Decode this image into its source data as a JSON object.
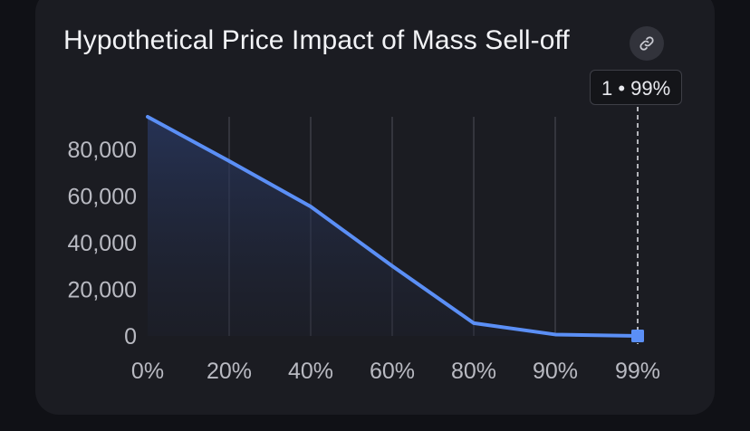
{
  "chart_data": {
    "type": "area",
    "title": "Hypothetical Price Impact of Mass Sell-off",
    "categories": [
      "0%",
      "20%",
      "40%",
      "60%",
      "80%",
      "90%",
      "99%"
    ],
    "series": [
      {
        "values": [
          94000,
          75000,
          55500,
          30000,
          5500,
          600,
          0
        ]
      }
    ],
    "yticks": [
      0,
      20000,
      40000,
      60000,
      80000
    ],
    "ytick_labels": [
      "0",
      "20,000",
      "40,000",
      "60,000",
      "80,000"
    ],
    "ylim": [
      0,
      94000
    ],
    "grid": "vertical",
    "line_color": "#5b8ff6",
    "tooltip": {
      "category": "99%",
      "text": "1 • 99%"
    }
  }
}
